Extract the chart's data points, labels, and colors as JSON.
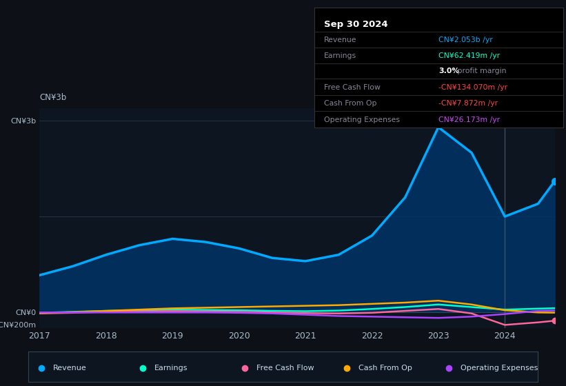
{
  "background_color": "#0d1117",
  "chart_bg_color": "#0d1520",
  "title_box_text": "Sep 30 2024",
  "x_years": [
    2017,
    2017.5,
    2018,
    2018.5,
    2019,
    2019.5,
    2020,
    2020.5,
    2021,
    2021.5,
    2022,
    2022.5,
    2023,
    2023.5,
    2024,
    2024.5,
    2024.75
  ],
  "revenue": [
    580,
    720,
    900,
    1050,
    1150,
    1100,
    1000,
    850,
    800,
    900,
    1200,
    1800,
    2900,
    2500,
    1500,
    1700,
    2053
  ],
  "earnings": [
    -10,
    5,
    20,
    30,
    40,
    35,
    30,
    20,
    15,
    25,
    50,
    80,
    120,
    80,
    40,
    55,
    62
  ],
  "free_cash_flow": [
    -20,
    -10,
    5,
    10,
    15,
    10,
    5,
    -5,
    -15,
    -20,
    -10,
    20,
    50,
    -20,
    -200,
    -160,
    -134
  ],
  "cash_from_op": [
    -15,
    0,
    20,
    40,
    60,
    70,
    80,
    90,
    100,
    110,
    130,
    150,
    180,
    120,
    30,
    -5,
    -8
  ],
  "op_expenses": [
    -5,
    -5,
    -5,
    -5,
    -5,
    -5,
    -10,
    -20,
    -40,
    -60,
    -70,
    -80,
    -90,
    -70,
    -30,
    20,
    26
  ],
  "revenue_color": "#00aaff",
  "earnings_color": "#00ffcc",
  "free_cash_flow_color": "#ff6699",
  "cash_from_op_color": "#ffaa00",
  "op_expenses_color": "#aa44ff",
  "fill_color": "#003366",
  "fill_alpha": 0.85,
  "ylim_min": -250,
  "ylim_max": 3200,
  "yticks": [
    -200,
    0,
    3000
  ],
  "ytick_labels": [
    "-CN¥200m",
    "CN¥0",
    "CN¥3b"
  ],
  "xtick_labels": [
    "2017",
    "2018",
    "2019",
    "2020",
    "2021",
    "2022",
    "2023",
    "2024"
  ],
  "xtick_positions": [
    2017,
    2018,
    2019,
    2020,
    2021,
    2022,
    2023,
    2024
  ],
  "vline_x": 2024,
  "legend_items": [
    {
      "label": "Revenue",
      "color": "#00aaff"
    },
    {
      "label": "Earnings",
      "color": "#00ffcc"
    },
    {
      "label": "Free Cash Flow",
      "color": "#ff6699"
    },
    {
      "label": "Cash From Op",
      "color": "#ffaa00"
    },
    {
      "label": "Operating Expenses",
      "color": "#aa44ff"
    }
  ],
  "info_rows": [
    {
      "label": "Revenue",
      "value": "CN¥2.053b /yr",
      "value_color": "#00aaff"
    },
    {
      "label": "Earnings",
      "value": "CN¥62.419m /yr",
      "value_color": "#00ffcc"
    },
    {
      "label": "",
      "value": "3.0% profit margin",
      "value_color": "#ffffff"
    },
    {
      "label": "Free Cash Flow",
      "value": "-CN¥134.070m /yr",
      "value_color": "#ff4444"
    },
    {
      "label": "Cash From Op",
      "value": "-CN¥7.872m /yr",
      "value_color": "#ff4444"
    },
    {
      "label": "Operating Expenses",
      "value": "CN¥26.173m /yr",
      "value_color": "#cc44ff"
    }
  ]
}
